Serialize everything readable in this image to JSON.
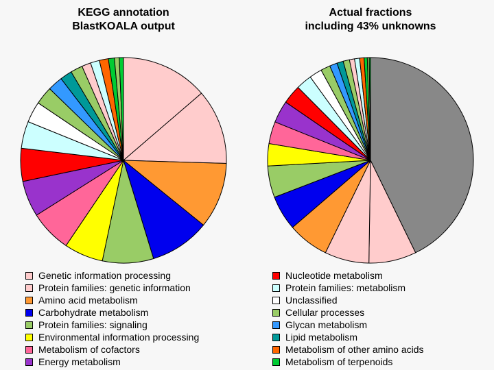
{
  "chart_data": [
    {
      "type": "pie",
      "title": "KEGG annotation\nBlastKOALA output",
      "slices": [
        {
          "label": "Genetic information processing",
          "value": 14.5,
          "color": "#ffcccc"
        },
        {
          "label": "Protein families: genetic information",
          "value": 12.5,
          "color": "#ffcccc"
        },
        {
          "label": "Amino acid metabolism",
          "value": 11.0,
          "color": "#ff9933"
        },
        {
          "label": "Carbohydrate metabolism",
          "value": 10.0,
          "color": "#0000ee"
        },
        {
          "label": "Protein families: signaling",
          "value": 8.5,
          "color": "#99cc66"
        },
        {
          "label": "Environmental information processing",
          "value": 6.5,
          "color": "#ffff00"
        },
        {
          "label": "Metabolism of cofactors",
          "value": 7.0,
          "color": "#ff6699"
        },
        {
          "label": "Energy metabolism",
          "value": 6.0,
          "color": "#9933cc"
        },
        {
          "label": "Nucleotide metabolism",
          "value": 5.5,
          "color": "#ff0000"
        },
        {
          "label": "Protein families: metabolism",
          "value": 4.5,
          "color": "#ccffff"
        },
        {
          "label": "Unclassified",
          "value": 3.5,
          "color": "#ffffff"
        },
        {
          "label": "Cellular processes",
          "value": 3.0,
          "color": "#99cc66"
        },
        {
          "label": "Glycan metabolism",
          "value": 2.5,
          "color": "#3399ff"
        },
        {
          "label": "Lipid metabolism",
          "value": 2.0,
          "color": "#009999"
        },
        {
          "label": "Cellular processes",
          "value": 2.0,
          "color": "#99cc66"
        },
        {
          "label": "Protein families: genetic information",
          "value": 1.5,
          "color": "#ffcccc"
        },
        {
          "label": "Protein families: metabolism",
          "value": 1.5,
          "color": "#ccffff"
        },
        {
          "label": "Metabolism of other amino acids",
          "value": 1.5,
          "color": "#ff6600"
        },
        {
          "label": "Metabolism of terpenoids",
          "value": 1.0,
          "color": "#00cc33"
        },
        {
          "label": "Cellular processes",
          "value": 0.8,
          "color": "#99cc66"
        },
        {
          "label": "Metabolism of terpenoids",
          "value": 0.7,
          "color": "#00cc33"
        }
      ]
    },
    {
      "type": "pie",
      "title": "Actual fractions\nincluding 43% unknowns",
      "slices": [
        {
          "label": "",
          "value": 43.0,
          "color": "#888888"
        },
        {
          "label": "Genetic information processing",
          "value": 7.5,
          "color": "#ffcccc"
        },
        {
          "label": "Protein families: genetic information",
          "value": 7.0,
          "color": "#ffcccc"
        },
        {
          "label": "Amino acid metabolism",
          "value": 6.5,
          "color": "#ff9933"
        },
        {
          "label": "Carbohydrate metabolism",
          "value": 5.5,
          "color": "#0000ee"
        },
        {
          "label": "Protein families: signaling",
          "value": 5.0,
          "color": "#99cc66"
        },
        {
          "label": "Environmental information processing",
          "value": 3.5,
          "color": "#ffff00"
        },
        {
          "label": "Metabolism of cofactors",
          "value": 3.5,
          "color": "#ff6699"
        },
        {
          "label": "Energy metabolism",
          "value": 3.5,
          "color": "#9933cc"
        },
        {
          "label": "Nucleotide metabolism",
          "value": 3.0,
          "color": "#ff0000"
        },
        {
          "label": "Protein families: metabolism",
          "value": 2.5,
          "color": "#ccffff"
        },
        {
          "label": "Unclassified",
          "value": 2.0,
          "color": "#ffffff"
        },
        {
          "label": "Cellular processes",
          "value": 1.5,
          "color": "#99cc66"
        },
        {
          "label": "Glycan metabolism",
          "value": 1.2,
          "color": "#3399ff"
        },
        {
          "label": "Lipid metabolism",
          "value": 1.0,
          "color": "#009999"
        },
        {
          "label": "Cellular processes",
          "value": 1.0,
          "color": "#99cc66"
        },
        {
          "label": "Protein families: genetic information",
          "value": 0.8,
          "color": "#ffcccc"
        },
        {
          "label": "Protein families: metabolism",
          "value": 0.8,
          "color": "#ccffff"
        },
        {
          "label": "Metabolism of other amino acids",
          "value": 0.7,
          "color": "#ff6600"
        },
        {
          "label": "Metabolism of terpenoids",
          "value": 0.5,
          "color": "#00cc33"
        },
        {
          "label": "Cellular processes",
          "value": 0.3,
          "color": "#99cc66"
        },
        {
          "label": "Metabolism of terpenoids",
          "value": 0.2,
          "color": "#00cc33"
        }
      ]
    }
  ],
  "legend": {
    "left": [
      {
        "label": "Genetic information processing",
        "color": "#ffcccc"
      },
      {
        "label": "Protein families: genetic information",
        "color": "#ffcccc"
      },
      {
        "label": "Amino acid metabolism",
        "color": "#ff9933"
      },
      {
        "label": "Carbohydrate metabolism",
        "color": "#0000ee"
      },
      {
        "label": "Protein families: signaling",
        "color": "#99cc66"
      },
      {
        "label": "Environmental information processing",
        "color": "#ffff00"
      },
      {
        "label": "Metabolism of cofactors",
        "color": "#ff6699"
      },
      {
        "label": "Energy metabolism",
        "color": "#9933cc"
      }
    ],
    "right": [
      {
        "label": "Nucleotide metabolism",
        "color": "#ff0000"
      },
      {
        "label": "Protein families: metabolism",
        "color": "#ccffff"
      },
      {
        "label": "Unclassified",
        "color": "#ffffff"
      },
      {
        "label": "Cellular processes",
        "color": "#99cc66"
      },
      {
        "label": "Glycan metabolism",
        "color": "#3399ff"
      },
      {
        "label": "Lipid metabolism",
        "color": "#009999"
      },
      {
        "label": "Metabolism of other amino acids",
        "color": "#ff6600"
      },
      {
        "label": "Metabolism of terpenoids",
        "color": "#00cc33"
      }
    ]
  }
}
